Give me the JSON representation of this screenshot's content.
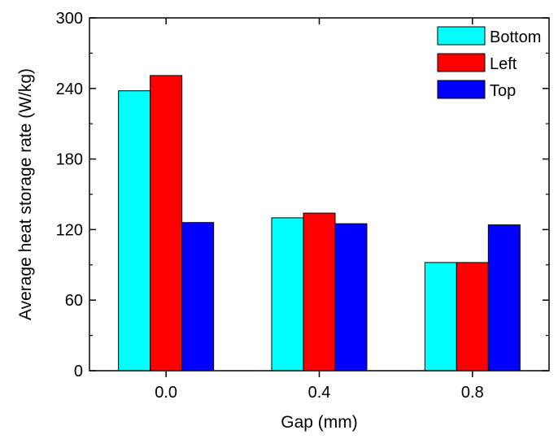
{
  "chart_data": {
    "type": "bar",
    "categories": [
      "0.0",
      "0.4",
      "0.8"
    ],
    "series": [
      {
        "name": "Bottom",
        "color": "#00ffff",
        "values": [
          238,
          130,
          92
        ]
      },
      {
        "name": "Left",
        "color": "#ff0000",
        "values": [
          251,
          134,
          92
        ]
      },
      {
        "name": "Top",
        "color": "#0000ff",
        "values": [
          126,
          125,
          124
        ]
      }
    ],
    "xlabel": "Gap (mm)",
    "ylabel": "Average heat storage rate (W/kg)",
    "ylim": [
      0,
      300
    ],
    "yticks": [
      "0",
      "60",
      "120",
      "180",
      "240",
      "300"
    ],
    "grid": false,
    "legend_position": "top-right"
  }
}
